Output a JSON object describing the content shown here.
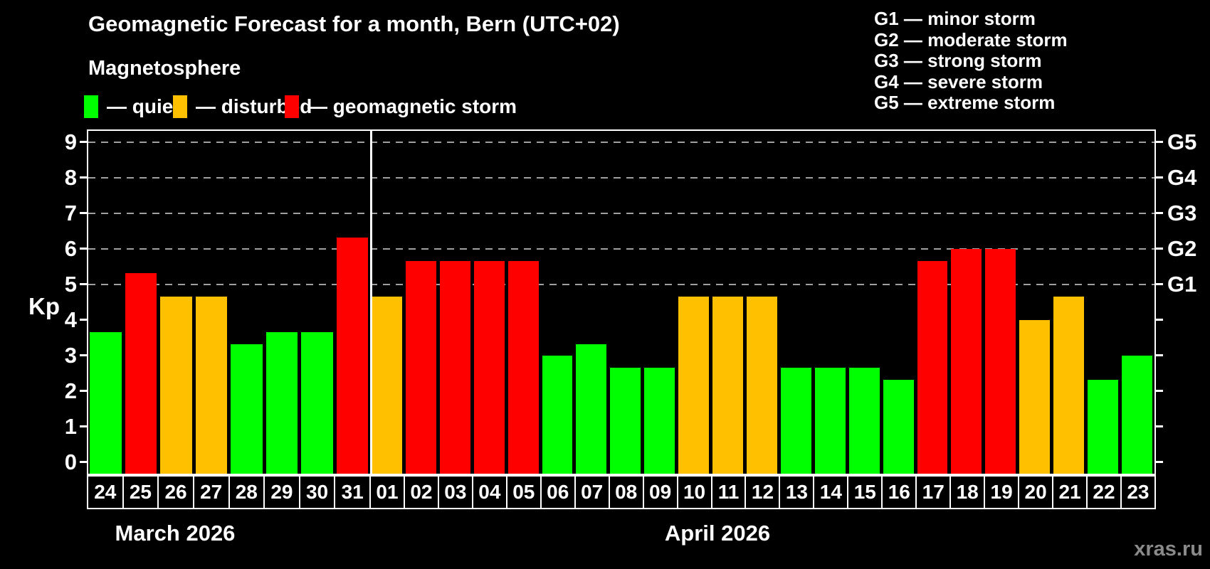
{
  "header": {
    "title": "Geomagnetic Forecast for a month, Bern (UTC+02)",
    "subtitle": "Magnetosphere"
  },
  "legend": {
    "items": [
      {
        "key": "quiet",
        "label": "— quiet",
        "color": "#00ff00"
      },
      {
        "key": "disturbed",
        "label": "— disturbed",
        "color": "#ffc000"
      },
      {
        "key": "storm",
        "label": "— geomagnetic storm",
        "color": "#ff0000"
      }
    ]
  },
  "g_scale_legend": {
    "items": [
      "G1 — minor storm",
      "G2 — moderate storm",
      "G3 — strong storm",
      "G4 — severe storm",
      "G5 — extreme storm"
    ]
  },
  "chart_data": {
    "type": "bar",
    "title": "Geomagnetic Forecast for a month, Bern (UTC+02)",
    "ylabel": "Kp",
    "ylim": [
      0,
      9.3
    ],
    "y_ticks": [
      0,
      1,
      2,
      3,
      4,
      5,
      6,
      7,
      8,
      9
    ],
    "gridlines_at": [
      5,
      6,
      7,
      8,
      9
    ],
    "grid_color": "#a0a0a0",
    "legend_position": "top",
    "right_axis_labels": [
      {
        "label": "G1",
        "kp": 5
      },
      {
        "label": "G2",
        "kp": 6
      },
      {
        "label": "G3",
        "kp": 7
      },
      {
        "label": "G4",
        "kp": 8
      },
      {
        "label": "G5",
        "kp": 9
      }
    ],
    "colors": {
      "quiet": "#00ff00",
      "disturbed": "#ffc000",
      "storm": "#ff0000"
    },
    "groups": [
      {
        "month": "March 2026",
        "days": [
          {
            "day": "24",
            "kp": 3.67,
            "status": "quiet"
          },
          {
            "day": "25",
            "kp": 5.33,
            "status": "storm"
          },
          {
            "day": "26",
            "kp": 4.67,
            "status": "disturbed"
          },
          {
            "day": "27",
            "kp": 4.67,
            "status": "disturbed"
          },
          {
            "day": "28",
            "kp": 3.33,
            "status": "quiet"
          },
          {
            "day": "29",
            "kp": 3.67,
            "status": "quiet"
          },
          {
            "day": "30",
            "kp": 3.67,
            "status": "quiet"
          },
          {
            "day": "31",
            "kp": 6.33,
            "status": "storm"
          }
        ]
      },
      {
        "month": "April 2026",
        "days": [
          {
            "day": "01",
            "kp": 4.67,
            "status": "disturbed"
          },
          {
            "day": "02",
            "kp": 5.67,
            "status": "storm"
          },
          {
            "day": "03",
            "kp": 5.67,
            "status": "storm"
          },
          {
            "day": "04",
            "kp": 5.67,
            "status": "storm"
          },
          {
            "day": "05",
            "kp": 5.67,
            "status": "storm"
          },
          {
            "day": "06",
            "kp": 3.0,
            "status": "quiet"
          },
          {
            "day": "07",
            "kp": 3.33,
            "status": "quiet"
          },
          {
            "day": "08",
            "kp": 2.67,
            "status": "quiet"
          },
          {
            "day": "09",
            "kp": 2.67,
            "status": "quiet"
          },
          {
            "day": "10",
            "kp": 4.67,
            "status": "disturbed"
          },
          {
            "day": "11",
            "kp": 4.67,
            "status": "disturbed"
          },
          {
            "day": "12",
            "kp": 4.67,
            "status": "disturbed"
          },
          {
            "day": "13",
            "kp": 2.67,
            "status": "quiet"
          },
          {
            "day": "14",
            "kp": 2.67,
            "status": "quiet"
          },
          {
            "day": "15",
            "kp": 2.67,
            "status": "quiet"
          },
          {
            "day": "16",
            "kp": 2.33,
            "status": "quiet"
          },
          {
            "day": "17",
            "kp": 5.67,
            "status": "storm"
          },
          {
            "day": "18",
            "kp": 6.0,
            "status": "storm"
          },
          {
            "day": "19",
            "kp": 6.0,
            "status": "storm"
          },
          {
            "day": "20",
            "kp": 4.0,
            "status": "disturbed"
          },
          {
            "day": "21",
            "kp": 4.67,
            "status": "disturbed"
          },
          {
            "day": "22",
            "kp": 2.33,
            "status": "quiet"
          },
          {
            "day": "23",
            "kp": 3.0,
            "status": "quiet"
          }
        ]
      }
    ]
  },
  "watermark": "xras.ru"
}
